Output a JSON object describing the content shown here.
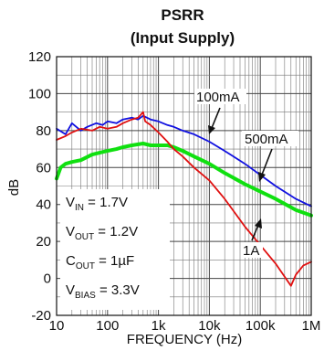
{
  "chart_data": {
    "type": "line",
    "title_line1": "PSRR",
    "title_line2": "(Input Supply)",
    "xlabel": "FREQUENCY (Hz)",
    "ylabel": "dB",
    "x_scale": "log",
    "xlim": [
      10,
      1000000
    ],
    "ylim": [
      -20,
      120
    ],
    "grid": true,
    "x_ticks": [
      10,
      100,
      1000,
      10000,
      100000,
      1000000
    ],
    "x_tick_labels": [
      "10",
      "100",
      "1k",
      "10k",
      "100k",
      "1M"
    ],
    "y_ticks": [
      -20,
      0,
      20,
      40,
      60,
      80,
      100,
      120
    ],
    "y_tick_labels": [
      "-20",
      "0",
      "20",
      "40",
      "60",
      "80",
      "100",
      "120"
    ],
    "series": [
      {
        "name": "100mA",
        "color": "#1010e0",
        "points": [
          [
            10,
            81
          ],
          [
            15,
            78
          ],
          [
            20,
            84
          ],
          [
            30,
            80
          ],
          [
            40,
            82
          ],
          [
            60,
            84
          ],
          [
            80,
            83
          ],
          [
            100,
            85
          ],
          [
            150,
            84
          ],
          [
            200,
            86
          ],
          [
            300,
            87
          ],
          [
            400,
            86
          ],
          [
            500,
            88
          ],
          [
            700,
            86
          ],
          [
            1000,
            85
          ],
          [
            1500,
            83
          ],
          [
            2000,
            82
          ],
          [
            3000,
            80
          ],
          [
            5000,
            78
          ],
          [
            10000,
            74
          ],
          [
            20000,
            69
          ],
          [
            50000,
            62
          ],
          [
            100000,
            56
          ],
          [
            200000,
            50
          ],
          [
            500000,
            43
          ],
          [
            1000000,
            39
          ]
        ]
      },
      {
        "name": "500mA",
        "color": "#10e010",
        "points": [
          [
            10,
            54
          ],
          [
            12,
            60
          ],
          [
            15,
            62
          ],
          [
            20,
            63
          ],
          [
            30,
            64
          ],
          [
            50,
            67
          ],
          [
            70,
            68
          ],
          [
            100,
            69
          ],
          [
            150,
            70
          ],
          [
            200,
            71
          ],
          [
            300,
            72
          ],
          [
            500,
            73
          ],
          [
            700,
            72
          ],
          [
            1000,
            72
          ],
          [
            1500,
            72
          ],
          [
            2000,
            71
          ],
          [
            3000,
            69
          ],
          [
            5000,
            66
          ],
          [
            10000,
            62
          ],
          [
            20000,
            57
          ],
          [
            50000,
            51
          ],
          [
            100000,
            47
          ],
          [
            200000,
            43
          ],
          [
            500000,
            37
          ],
          [
            1000000,
            34
          ]
        ]
      },
      {
        "name": "1A",
        "color": "#e01010",
        "points": [
          [
            10,
            75
          ],
          [
            15,
            77
          ],
          [
            20,
            79
          ],
          [
            30,
            81
          ],
          [
            50,
            80
          ],
          [
            70,
            82
          ],
          [
            100,
            81
          ],
          [
            150,
            82
          ],
          [
            200,
            84
          ],
          [
            300,
            86
          ],
          [
            400,
            87
          ],
          [
            500,
            90
          ],
          [
            550,
            85
          ],
          [
            700,
            83
          ],
          [
            1000,
            79
          ],
          [
            1500,
            74
          ],
          [
            2000,
            70
          ],
          [
            3000,
            66
          ],
          [
            5000,
            60
          ],
          [
            10000,
            53
          ],
          [
            20000,
            43
          ],
          [
            50000,
            28
          ],
          [
            100000,
            18
          ],
          [
            200000,
            8
          ],
          [
            300000,
            1
          ],
          [
            400000,
            -4
          ],
          [
            500000,
            2
          ],
          [
            700000,
            7
          ],
          [
            1000000,
            9
          ]
        ]
      }
    ],
    "annotations": {
      "a100": "100mA",
      "a500": "500mA",
      "a1a": "1A"
    },
    "conditions": {
      "vin_main": "V",
      "vin_sub": "IN",
      "vin_val": " = 1.7V",
      "vout_main": "V",
      "vout_sub": "OUT",
      "vout_val": " = 1.2V",
      "cout_main": "C",
      "cout_sub": "OUT",
      "cout_val": " = 1µF",
      "vbias_main": "V",
      "vbias_sub": "BIAS",
      "vbias_val": " = 3.3V"
    }
  }
}
